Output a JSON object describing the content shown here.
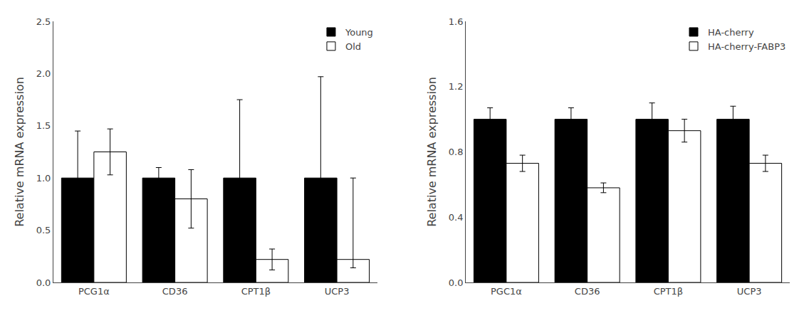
{
  "chart_data": [
    {
      "type": "bar",
      "categories": [
        "PCG1α",
        "CD36",
        "CPT1β",
        "UCP3"
      ],
      "series": [
        {
          "name": "Young",
          "color": "#000000",
          "values": [
            1.0,
            1.0,
            1.0,
            1.0
          ],
          "errors": [
            0.45,
            0.1,
            0.75,
            0.97
          ]
        },
        {
          "name": "Old",
          "color": "#ffffff",
          "values": [
            1.25,
            0.8,
            0.22,
            0.22
          ],
          "errors_up": [
            0.22,
            0.28,
            0.1,
            0.78
          ],
          "errors_down": [
            0.22,
            0.28,
            0.1,
            0.08
          ]
        }
      ],
      "ylabel": "Relative mRNA expression",
      "ylim": [
        0,
        2.5
      ],
      "yticks": [
        {
          "value": 0,
          "label": "0.0"
        },
        0.5,
        {
          "value": 1.0,
          "label": "1.0"
        },
        1.5,
        {
          "value": 2.0,
          "label": "2.0"
        },
        2.5
      ],
      "grid": false,
      "legend": "upper right"
    },
    {
      "type": "bar",
      "categories": [
        "PGC1α",
        "CD36",
        "CPT1β",
        "UCP3"
      ],
      "series": [
        {
          "name": "HA-cherry",
          "color": "#000000",
          "values": [
            1.0,
            1.0,
            1.0,
            1.0
          ],
          "errors": [
            0.07,
            0.07,
            0.1,
            0.08
          ]
        },
        {
          "name": "HA-cherry-FABP3",
          "color": "#ffffff",
          "values": [
            0.73,
            0.58,
            0.93,
            0.73
          ],
          "errors": [
            0.05,
            0.03,
            0.07,
            0.05
          ]
        }
      ],
      "ylabel": "Relative mRNA expression",
      "ylim": [
        0,
        1.6
      ],
      "yticks": [
        {
          "value": 0,
          "label": "0.0"
        },
        0.4,
        0.8,
        1.2,
        1.6
      ],
      "grid": false,
      "legend": "upper right"
    }
  ]
}
